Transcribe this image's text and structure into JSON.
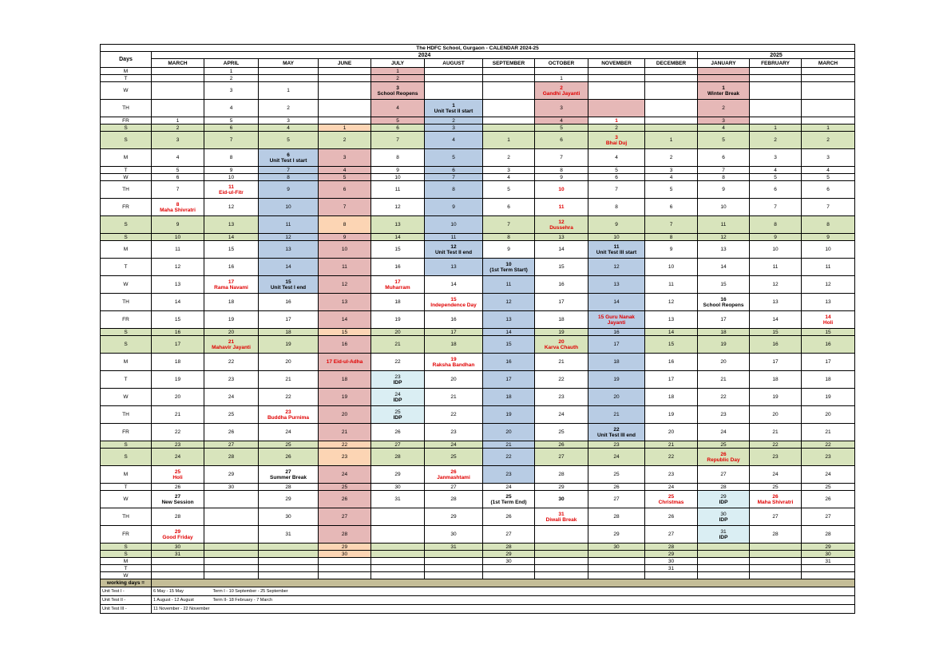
{
  "title": "The HDFC School, Gurgaon - CALENDAR 2024-25",
  "days_header": "Days",
  "years": [
    "2024",
    "2025"
  ],
  "months": [
    "MARCH",
    "APRIL",
    "MAY",
    "JUNE",
    "JULY",
    "AUGUST",
    "SEPTEMBER",
    "OCTOBER",
    "NOVEMBER",
    "DECEMBER",
    "JANUARY",
    "FEBRUARY",
    "MARCH"
  ],
  "colors": {
    "pink": "#e6b8b7",
    "blue": "#b8cce4",
    "green": "#d8e4bc",
    "orange": "#fcd5b4",
    "light_blue": "#daeef3",
    "tan": "#c4bd97",
    "red_text": "#e00000"
  },
  "rows": [
    {
      "day": "M",
      "h": 9,
      "cells": [
        "",
        "1",
        "",
        "",
        "1",
        "",
        "",
        "",
        "",
        "",
        "",
        "",
        ""
      ]
    },
    {
      "day": "T",
      "h": 9,
      "cells": [
        "",
        "2",
        "",
        "",
        "2",
        "",
        "",
        "1",
        "",
        "",
        "",
        "",
        ""
      ]
    },
    {
      "day": "W",
      "h": 22,
      "cells": [
        "",
        "3",
        "1",
        "",
        "3|School Reopens",
        "",
        "",
        "2|Gandhi Jayanti",
        "",
        "",
        "1|Winter Break",
        "",
        ""
      ]
    },
    {
      "day": "TH",
      "h": 22,
      "cells": [
        "",
        "4",
        "2",
        "",
        "4",
        "1|Unit Test II start",
        "",
        "3",
        "",
        "",
        "2",
        "",
        ""
      ]
    },
    {
      "day": "FR",
      "h": 9,
      "cells": [
        "1",
        "5",
        "3",
        "",
        "5",
        "2",
        "",
        "4",
        "1",
        "",
        "3",
        "",
        ""
      ]
    },
    {
      "day": "S",
      "h": 9,
      "cells": [
        "2",
        "6",
        "4",
        "1",
        "6",
        "3",
        "",
        "5",
        "2",
        "",
        "4",
        "1",
        "1"
      ]
    },
    {
      "day": "S",
      "h": 22,
      "cells": [
        "3",
        "7",
        "5",
        "2",
        "7",
        "4",
        "1",
        "6",
        "3|Bhai Duj",
        "1",
        "5",
        "2",
        "2"
      ]
    },
    {
      "day": "M",
      "h": 22,
      "cells": [
        "4",
        "8",
        "6|Unit Test I start",
        "3",
        "8",
        "5",
        "2",
        "7",
        "4",
        "2",
        "6",
        "3",
        "3"
      ]
    },
    {
      "day": "T",
      "h": 9,
      "cells": [
        "5",
        "9",
        "7",
        "4",
        "9",
        "6",
        "3",
        "8",
        "5",
        "3",
        "7",
        "4",
        "4"
      ]
    },
    {
      "day": "W",
      "h": 9,
      "cells": [
        "6",
        "10",
        "8",
        "5",
        "10",
        "7",
        "4",
        "9",
        "6",
        "4",
        "8",
        "5",
        "5"
      ]
    },
    {
      "day": "TH",
      "h": 22,
      "cells": [
        "7",
        "11|Eid-ul-Fitr",
        "9",
        "6",
        "11",
        "8",
        "5",
        "10",
        "7",
        "5",
        "9",
        "6",
        "6"
      ]
    },
    {
      "day": "FR",
      "h": 22,
      "cells": [
        "8|Maha Shivratri",
        "12",
        "10",
        "7",
        "12",
        "9",
        "6",
        "11",
        "8",
        "6",
        "10",
        "7",
        "7"
      ]
    },
    {
      "day": "S",
      "h": 22,
      "cells": [
        "9",
        "13",
        "11",
        "8",
        "13",
        "10",
        "7",
        "12|Dussehra",
        "9",
        "7",
        "11",
        "8",
        "8"
      ]
    },
    {
      "day": "S",
      "h": 9,
      "cells": [
        "10",
        "14",
        "12",
        "9",
        "14",
        "11",
        "8",
        "13",
        "10",
        "8",
        "12",
        "9",
        "9"
      ]
    },
    {
      "day": "M",
      "h": 22,
      "cells": [
        "11",
        "15",
        "13",
        "10",
        "15",
        "12|Unit Test II end",
        "9",
        "14",
        "11|Unit Test III start",
        "9",
        "13",
        "10",
        "10"
      ]
    },
    {
      "day": "T",
      "h": 22,
      "cells": [
        "12",
        "16",
        "14",
        "11",
        "16",
        "13",
        "10|(1st Term Start)",
        "15",
        "12",
        "10",
        "14",
        "11",
        "11"
      ]
    },
    {
      "day": "W",
      "h": 22,
      "cells": [
        "13",
        "17|Rama Navami",
        "15|Unit Test I end",
        "12",
        "17|Muharram",
        "14",
        "11",
        "16",
        "13",
        "11",
        "15",
        "12",
        "12"
      ]
    },
    {
      "day": "TH",
      "h": 22,
      "cells": [
        "14",
        "18",
        "16",
        "13",
        "18",
        "15|Independence Day",
        "12",
        "17",
        "14",
        "12",
        "16|School Reopens",
        "13",
        "13"
      ]
    },
    {
      "day": "FR",
      "h": 22,
      "cells": [
        "15",
        "19",
        "17",
        "14",
        "19",
        "16",
        "13",
        "18",
        "15 Guru Nanak|Jayanti",
        "13",
        "17",
        "14",
        "14|Holi"
      ]
    },
    {
      "day": "S",
      "h": 9,
      "cells": [
        "16",
        "20",
        "18",
        "15",
        "20",
        "17",
        "14",
        "19",
        "16",
        "14",
        "18",
        "15",
        "15"
      ]
    },
    {
      "day": "S",
      "h": 22,
      "cells": [
        "17",
        "21|Mahavir Jayanti",
        "19",
        "16",
        "21",
        "18",
        "15",
        "20|Karva Chauth",
        "17",
        "15",
        "19",
        "16",
        "16"
      ]
    },
    {
      "day": "M",
      "h": 22,
      "cells": [
        "18",
        "22",
        "20",
        "17 Eid-ul-Adha",
        "22",
        "19|Raksha Bandhan",
        "16",
        "21",
        "18",
        "16",
        "20",
        "17",
        "17"
      ]
    },
    {
      "day": "T",
      "h": 22,
      "cells": [
        "19",
        "23",
        "21",
        "18",
        "23|IDP",
        "20",
        "17",
        "22",
        "19",
        "17",
        "21",
        "18",
        "18"
      ]
    },
    {
      "day": "W",
      "h": 22,
      "cells": [
        "20",
        "24",
        "22",
        "19",
        "24|IDP",
        "21",
        "18",
        "23",
        "20",
        "18",
        "22",
        "19",
        "19"
      ]
    },
    {
      "day": "TH",
      "h": 22,
      "cells": [
        "21",
        "25",
        "23|Buddha Purnima",
        "20",
        "25|IDP",
        "22",
        "19",
        "24",
        "21",
        "19",
        "23",
        "20",
        "20"
      ]
    },
    {
      "day": "FR",
      "h": 22,
      "cells": [
        "22",
        "26",
        "24",
        "21",
        "26",
        "23",
        "20",
        "25",
        "22|Unit Test III end",
        "20",
        "24",
        "21",
        "21"
      ]
    },
    {
      "day": "S",
      "h": 9,
      "cells": [
        "23",
        "27",
        "25",
        "22",
        "27",
        "24",
        "21",
        "26",
        "23",
        "21",
        "25",
        "22",
        "22"
      ]
    },
    {
      "day": "S",
      "h": 22,
      "cells": [
        "24",
        "28",
        "26",
        "23",
        "28",
        "25",
        "22",
        "27",
        "24",
        "22",
        "26|Republic Day",
        "23",
        "23"
      ]
    },
    {
      "day": "M",
      "h": 22,
      "cells": [
        "25|Holi",
        "29",
        "27|Summer Break",
        "24",
        "29",
        "26|Janmashtami",
        "23",
        "28",
        "25",
        "23",
        "27",
        "24",
        "24"
      ]
    },
    {
      "day": "T",
      "h": 9,
      "cells": [
        "26",
        "30",
        "28",
        "25",
        "30",
        "27",
        "24",
        "29",
        "26",
        "24",
        "28",
        "25",
        "25"
      ]
    },
    {
      "day": "W",
      "h": 22,
      "cells": [
        "27|New Session",
        "",
        "29",
        "26",
        "31",
        "28",
        "25|(1st Term End)",
        "30",
        "27",
        "25|Christmas",
        "29|IDP",
        "26|Maha Shivratri",
        "26"
      ]
    },
    {
      "day": "TH",
      "h": 22,
      "cells": [
        "28",
        "",
        "30",
        "27",
        "",
        "29",
        "26",
        "31|Diwali Break",
        "28",
        "26",
        "30|IDP",
        "27",
        "27"
      ]
    },
    {
      "day": "FR",
      "h": 22,
      "cells": [
        "29|Good Friday",
        "",
        "31",
        "28",
        "",
        "30",
        "27",
        "",
        "29",
        "27",
        "31|IDP",
        "28",
        "28"
      ]
    },
    {
      "day": "S",
      "h": 9,
      "cells": [
        "30",
        "",
        "",
        "29",
        "",
        "31",
        "28",
        "",
        "30",
        "28",
        "",
        "",
        "29"
      ]
    },
    {
      "day": "S",
      "h": 9,
      "cells": [
        "31",
        "",
        "",
        "30",
        "",
        "",
        "29",
        "",
        "",
        "29",
        "",
        "",
        "30"
      ]
    },
    {
      "day": "M",
      "h": 9,
      "cells": [
        "",
        "",
        "",
        "",
        "",
        "",
        "30",
        "",
        "",
        "30",
        "",
        "",
        "31"
      ]
    },
    {
      "day": "T",
      "h": 9,
      "cells": [
        "",
        "",
        "",
        "",
        "",
        "",
        "",
        "",
        "",
        "31",
        "",
        "",
        ""
      ]
    },
    {
      "day": "W",
      "h": 9,
      "cells": [
        "",
        "",
        "",
        "",
        "",
        "",
        "",
        "",
        "",
        "",
        "",
        "",
        ""
      ]
    }
  ],
  "working_days_label": "working days =",
  "notes": [
    {
      "label": "Unit Test I -",
      "dates": "6 May - 15 May",
      "term": "Term I -   10 September - 25 September"
    },
    {
      "label": "Unit Test II -",
      "dates": "1 August - 12 August",
      "term": "Term II-  18 February - 7 March"
    },
    {
      "label": "Unit Test III -",
      "dates": "11 November - 22 November",
      "term": ""
    }
  ]
}
